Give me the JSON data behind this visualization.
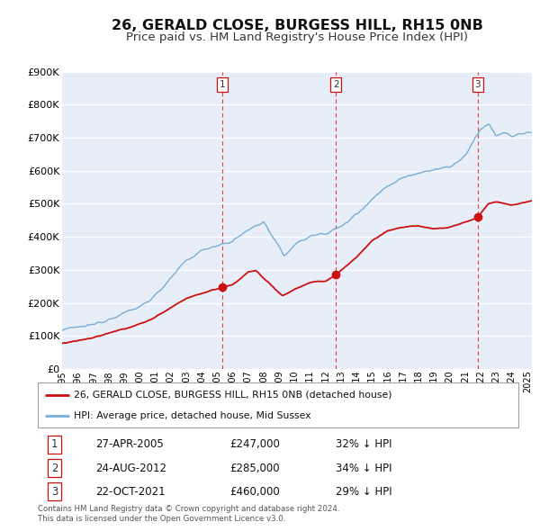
{
  "title": "26, GERALD CLOSE, BURGESS HILL, RH15 0NB",
  "subtitle": "Price paid vs. HM Land Registry's House Price Index (HPI)",
  "title_fontsize": 11.5,
  "subtitle_fontsize": 9.5,
  "ylim": [
    0,
    900000
  ],
  "yticks": [
    0,
    100000,
    200000,
    300000,
    400000,
    500000,
    600000,
    700000,
    800000,
    900000
  ],
  "background_color": "#ffffff",
  "plot_bg_color": "#e8eef8",
  "grid_color": "#ffffff",
  "hpi_color": "#7aadd4",
  "price_color": "#cc1111",
  "transactions": [
    {
      "date_num": 2005.32,
      "price": 247000,
      "label": "1"
    },
    {
      "date_num": 2012.65,
      "price": 285000,
      "label": "2"
    },
    {
      "date_num": 2021.81,
      "price": 460000,
      "label": "3"
    }
  ],
  "legend_entries": [
    "26, GERALD CLOSE, BURGESS HILL, RH15 0NB (detached house)",
    "HPI: Average price, detached house, Mid Sussex"
  ],
  "table_rows": [
    {
      "num": "1",
      "date": "27-APR-2005",
      "price": "£247,000",
      "note": "32% ↓ HPI"
    },
    {
      "num": "2",
      "date": "24-AUG-2012",
      "price": "£285,000",
      "note": "34% ↓ HPI"
    },
    {
      "num": "3",
      "date": "22-OCT-2021",
      "price": "£460,000",
      "note": "29% ↓ HPI"
    }
  ],
  "footnote": "Contains HM Land Registry data © Crown copyright and database right 2024.\nThis data is licensed under the Open Government Licence v3.0.",
  "xmin": 1995.0,
  "xmax": 2025.3
}
